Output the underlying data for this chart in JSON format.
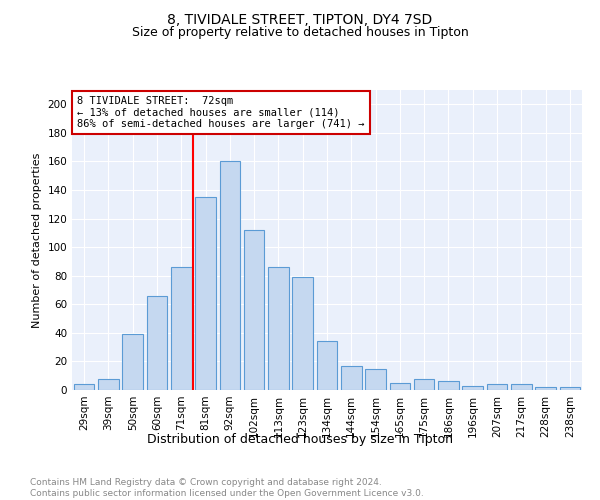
{
  "title": "8, TIVIDALE STREET, TIPTON, DY4 7SD",
  "subtitle": "Size of property relative to detached houses in Tipton",
  "xlabel": "Distribution of detached houses by size in Tipton",
  "ylabel": "Number of detached properties",
  "footer": "Contains HM Land Registry data © Crown copyright and database right 2024.\nContains public sector information licensed under the Open Government Licence v3.0.",
  "bar_labels": [
    "29sqm",
    "39sqm",
    "50sqm",
    "60sqm",
    "71sqm",
    "81sqm",
    "92sqm",
    "102sqm",
    "113sqm",
    "123sqm",
    "134sqm",
    "144sqm",
    "154sqm",
    "165sqm",
    "175sqm",
    "186sqm",
    "196sqm",
    "207sqm",
    "217sqm",
    "228sqm",
    "238sqm"
  ],
  "bar_values": [
    4,
    8,
    39,
    66,
    86,
    135,
    160,
    112,
    86,
    79,
    34,
    17,
    15,
    5,
    8,
    6,
    3,
    4,
    4,
    2,
    2
  ],
  "bar_color": "#c5d8f0",
  "bar_edge_color": "#5b9bd5",
  "annotation_text_line1": "8 TIVIDALE STREET:  72sqm",
  "annotation_text_line2": "← 13% of detached houses are smaller (114)",
  "annotation_text_line3": "86% of semi-detached houses are larger (741) →",
  "annotation_box_color": "#ffffff",
  "annotation_box_edge_color": "#cc0000",
  "ylim": [
    0,
    210
  ],
  "yticks": [
    0,
    20,
    40,
    60,
    80,
    100,
    120,
    140,
    160,
    180,
    200
  ],
  "background_color": "#eaf0fb",
  "grid_color": "#ffffff",
  "title_fontsize": 10,
  "subtitle_fontsize": 9,
  "axis_label_fontsize": 9,
  "tick_fontsize": 7.5,
  "footer_fontsize": 6.5,
  "ylabel_fontsize": 8
}
